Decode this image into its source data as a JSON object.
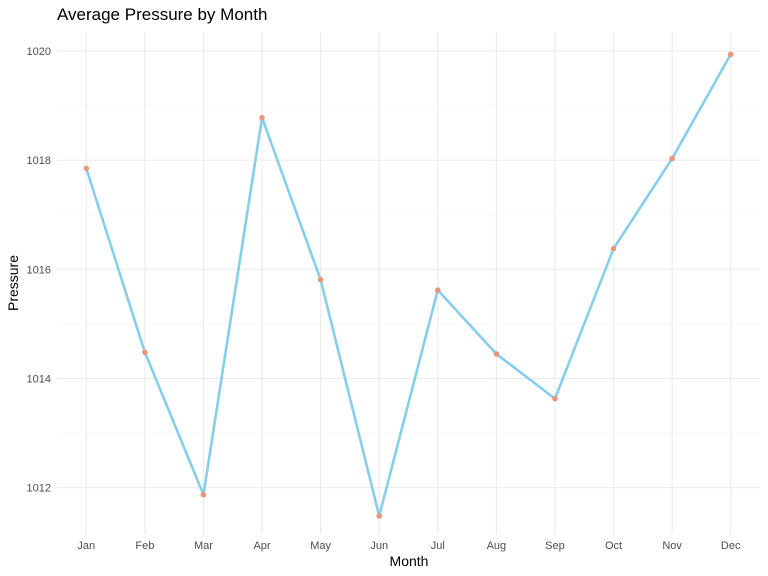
{
  "chart_data": {
    "type": "line",
    "title": "Average Pressure by Month",
    "xlabel": "Month",
    "ylabel": "Pressure",
    "categories": [
      "Jan",
      "Feb",
      "Mar",
      "Apr",
      "May",
      "Jun",
      "Jul",
      "Aug",
      "Sep",
      "Oct",
      "Nov",
      "Dec"
    ],
    "series": [
      {
        "values": [
          1017.85,
          1014.48,
          1011.87,
          1018.78,
          1015.81,
          1011.48,
          1015.62,
          1014.45,
          1013.63,
          1016.38,
          1018.03,
          1019.94
        ]
      }
    ],
    "ylim": [
      1011.15,
      1020.35
    ],
    "yticks": [
      1012,
      1014,
      1016,
      1018,
      1020
    ],
    "grid": true,
    "legend": "none",
    "colors": {
      "line": "#87ceeb",
      "point": "#e9967a"
    }
  }
}
